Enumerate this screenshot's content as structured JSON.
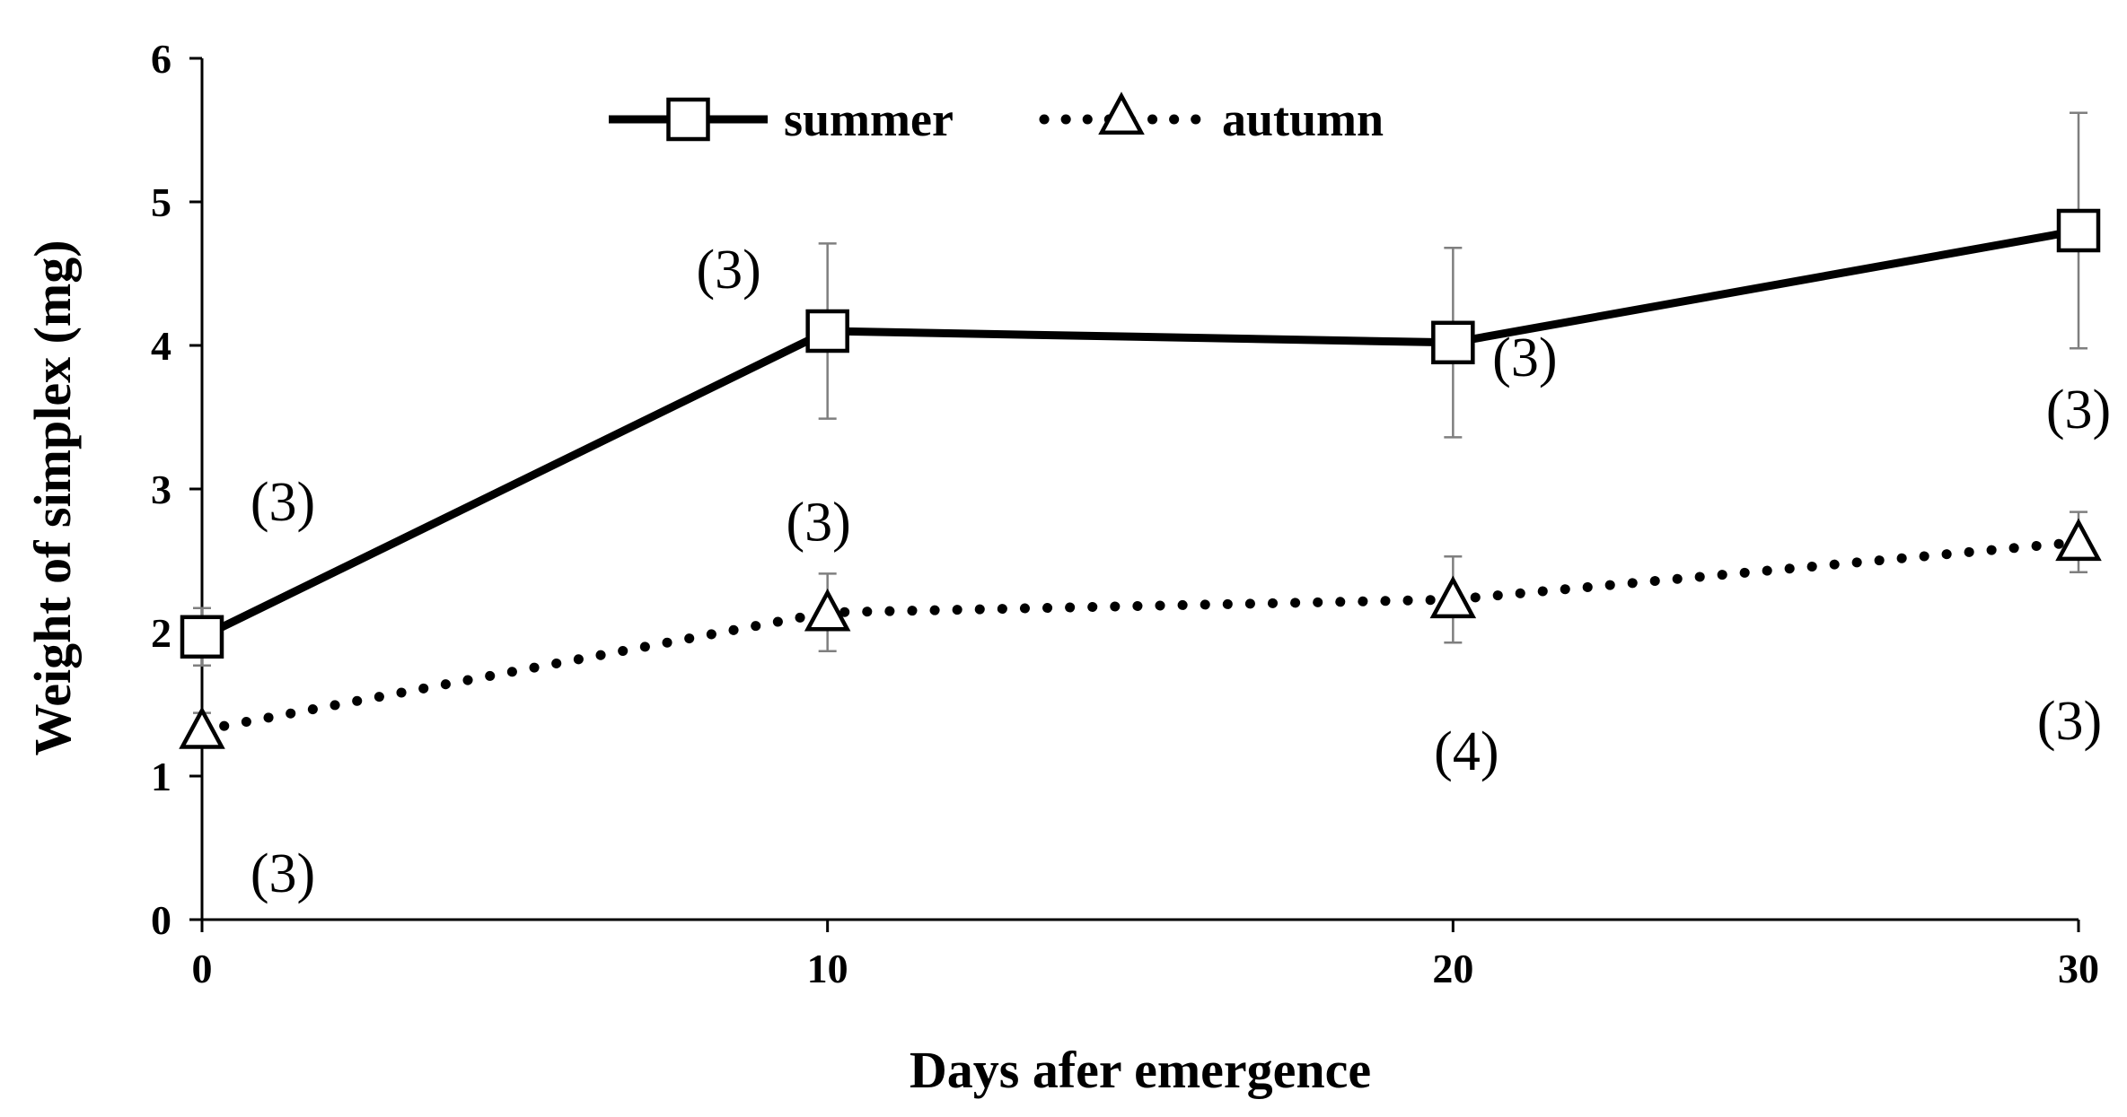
{
  "chart_data": {
    "type": "line",
    "title": "",
    "xlabel": "Days afer emergence",
    "ylabel": "Weight of simplex (mg)",
    "x": [
      0,
      10,
      20,
      30
    ],
    "xlim": [
      0,
      30
    ],
    "ylim": [
      0,
      6
    ],
    "x_ticks": [
      "0",
      "10",
      "20",
      "30"
    ],
    "y_ticks": [
      "0",
      "1",
      "2",
      "3",
      "4",
      "5",
      "6"
    ],
    "grid": false,
    "legend_position": "top-center",
    "series": [
      {
        "name": "summer",
        "style": "solid",
        "marker": "square",
        "color": "#000000",
        "values": [
          1.97,
          4.1,
          4.02,
          4.8
        ],
        "error": [
          0.2,
          0.61,
          0.66,
          0.82
        ],
        "n_labels": [
          "(3)",
          "(3)",
          "(3)",
          "(3)"
        ]
      },
      {
        "name": "autumn",
        "style": "dotted",
        "marker": "triangle",
        "color": "#000000",
        "values": [
          1.32,
          2.14,
          2.23,
          2.63
        ],
        "error": [
          0.12,
          0.27,
          0.3,
          0.21
        ],
        "n_labels": [
          "(3)",
          "(3)",
          "(4)",
          "(3)"
        ]
      }
    ]
  }
}
